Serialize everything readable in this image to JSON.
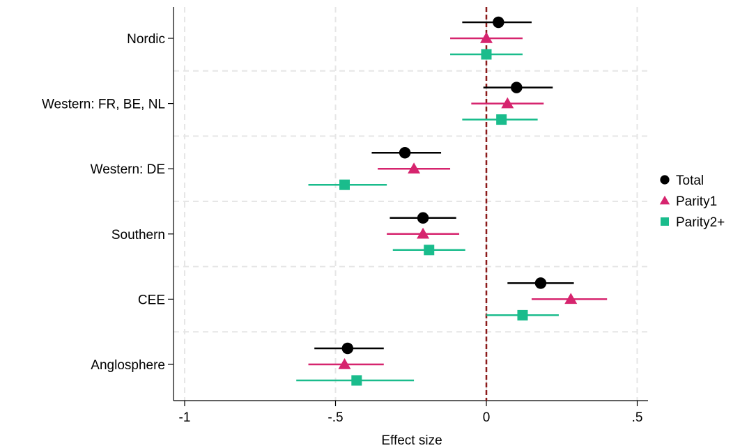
{
  "chart_data": {
    "type": "scatter",
    "title": "",
    "xlabel": "Effect size",
    "ylabel": "",
    "xlim": [
      -1.05,
      0.53
    ],
    "xticks": [
      -1,
      -0.5,
      0,
      0.5
    ],
    "xtick_labels": [
      "-1",
      "-.5",
      "0",
      ".5"
    ],
    "grid": true,
    "reference_line": {
      "x": 0,
      "style": "dashed",
      "color": "#8b1a1a"
    },
    "categories": [
      "Nordic",
      "Western: FR, BE, NL",
      "Western: DE",
      "Southern",
      "CEE",
      "Anglosphere"
    ],
    "legend_position": "right",
    "series": [
      {
        "name": "Total",
        "marker": "circle",
        "color": "#000000",
        "points": [
          {
            "category": "Nordic",
            "estimate": 0.04,
            "ci_low": -0.08,
            "ci_high": 0.15
          },
          {
            "category": "Western: FR, BE, NL",
            "estimate": 0.1,
            "ci_low": -0.01,
            "ci_high": 0.22
          },
          {
            "category": "Western: DE",
            "estimate": -0.27,
            "ci_low": -0.38,
            "ci_high": -0.15
          },
          {
            "category": "Southern",
            "estimate": -0.21,
            "ci_low": -0.32,
            "ci_high": -0.1
          },
          {
            "category": "CEE",
            "estimate": 0.18,
            "ci_low": 0.07,
            "ci_high": 0.29
          },
          {
            "category": "Anglosphere",
            "estimate": -0.46,
            "ci_low": -0.57,
            "ci_high": -0.34
          }
        ]
      },
      {
        "name": "Parity1",
        "marker": "triangle",
        "color": "#d6246e",
        "points": [
          {
            "category": "Nordic",
            "estimate": 0.0,
            "ci_low": -0.12,
            "ci_high": 0.12
          },
          {
            "category": "Western: FR, BE, NL",
            "estimate": 0.07,
            "ci_low": -0.05,
            "ci_high": 0.19
          },
          {
            "category": "Western: DE",
            "estimate": -0.24,
            "ci_low": -0.36,
            "ci_high": -0.12
          },
          {
            "category": "Southern",
            "estimate": -0.21,
            "ci_low": -0.33,
            "ci_high": -0.09
          },
          {
            "category": "CEE",
            "estimate": 0.28,
            "ci_low": 0.15,
            "ci_high": 0.4
          },
          {
            "category": "Anglosphere",
            "estimate": -0.47,
            "ci_low": -0.59,
            "ci_high": -0.34
          }
        ]
      },
      {
        "name": "Parity2+",
        "marker": "square",
        "color": "#1abc8c",
        "points": [
          {
            "category": "Nordic",
            "estimate": 0.0,
            "ci_low": -0.12,
            "ci_high": 0.12
          },
          {
            "category": "Western: FR, BE, NL",
            "estimate": 0.05,
            "ci_low": -0.08,
            "ci_high": 0.17
          },
          {
            "category": "Western: DE",
            "estimate": -0.47,
            "ci_low": -0.59,
            "ci_high": -0.33
          },
          {
            "category": "Southern",
            "estimate": -0.19,
            "ci_low": -0.31,
            "ci_high": -0.07
          },
          {
            "category": "CEE",
            "estimate": 0.12,
            "ci_low": 0.0,
            "ci_high": 0.24
          },
          {
            "category": "Anglosphere",
            "estimate": -0.43,
            "ci_low": -0.63,
            "ci_high": -0.24
          }
        ]
      }
    ]
  }
}
